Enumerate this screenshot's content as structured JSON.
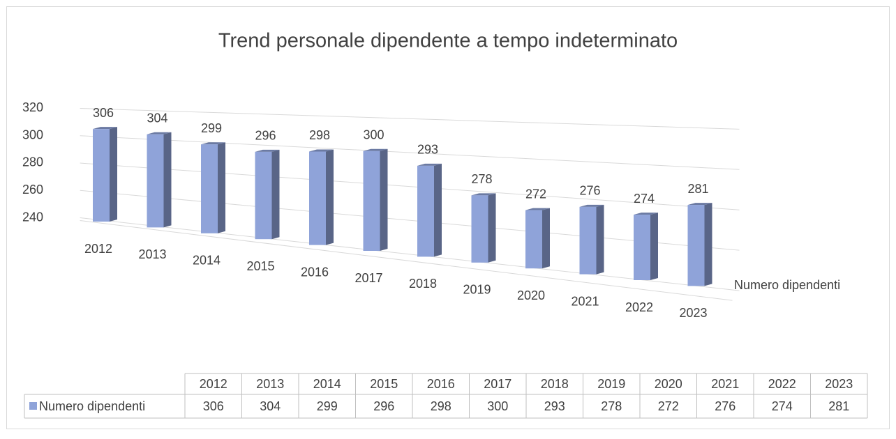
{
  "chart_data": {
    "type": "bar3d",
    "title": "Trend personale dipendente a tempo indeterminato",
    "categories": [
      "2012",
      "2013",
      "2014",
      "2015",
      "2016",
      "2017",
      "2018",
      "2019",
      "2020",
      "2021",
      "2022",
      "2023"
    ],
    "series": [
      {
        "name": "Numero dipendenti",
        "color": "#8fa3d9",
        "values": [
          306,
          304,
          299,
          296,
          298,
          300,
          293,
          278,
          272,
          276,
          274,
          281
        ]
      }
    ],
    "ylim": [
      240,
      320
    ],
    "yticks": [
      240,
      260,
      280,
      300,
      320
    ],
    "grid": true
  }
}
